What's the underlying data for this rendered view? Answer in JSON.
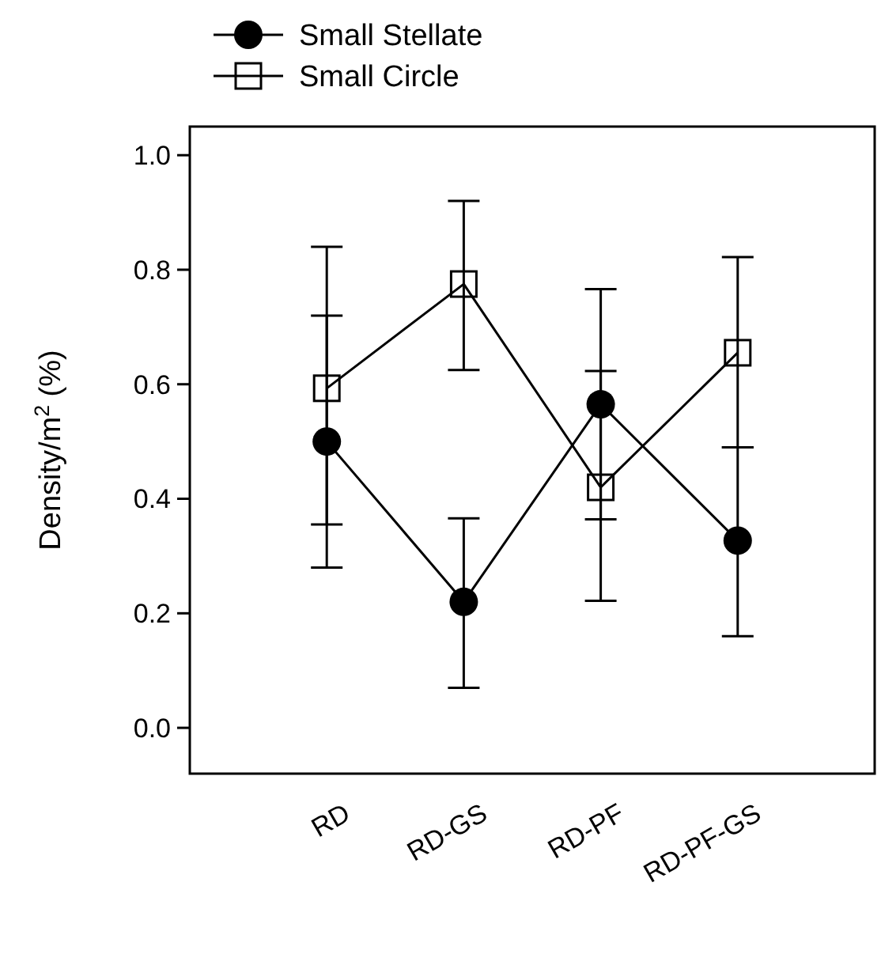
{
  "chart_data": {
    "type": "line",
    "ylabel": "Density/m$^{2}$ (%)",
    "categories": [
      "RD",
      "RD-GS",
      "RD-PF",
      "RD-PF-GS"
    ],
    "series": [
      {
        "name": "Small Stellate",
        "color": "#000000",
        "marker": "circle",
        "values": [
          0.5,
          0.22,
          0.565,
          0.327
        ],
        "errors": [
          [
            0.28,
            0.72
          ],
          [
            0.07,
            0.366
          ],
          [
            0.364,
            0.766
          ],
          [
            0.16,
            0.49
          ]
        ]
      },
      {
        "name": "Small Circle",
        "color": "#000000",
        "marker": "square",
        "values": [
          0.593,
          0.775,
          0.42,
          0.655
        ],
        "errors": [
          [
            0.355,
            0.84
          ],
          [
            0.625,
            0.92
          ],
          [
            0.222,
            0.623
          ],
          [
            0.49,
            0.822
          ]
        ]
      }
    ],
    "ylim": [
      -0.08,
      1.05
    ],
    "yticks": [
      {
        "value": 0,
        "label": "0.0"
      },
      0.2,
      0.4,
      0.6,
      0.8,
      {
        "value": 1,
        "label": "1.0"
      }
    ],
    "grid": false,
    "legend": "top left",
    "line_style": "solid"
  }
}
